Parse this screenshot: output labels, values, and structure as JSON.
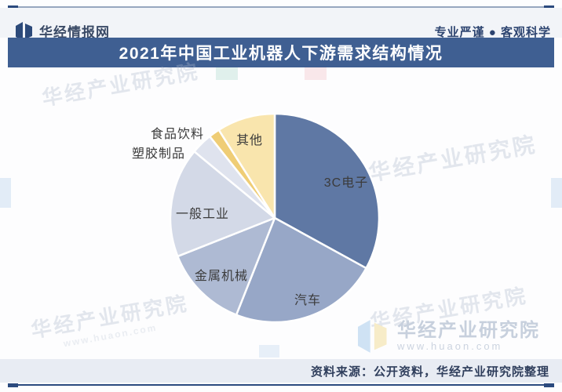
{
  "header": {
    "brand": "华经情报网",
    "slogan": "专业严谨 ● 客观科学"
  },
  "title": "2021年中国工业机器人下游需求结构情况",
  "chart_data": {
    "type": "pie",
    "title": "2021年中国工业机器人下游需求结构情况",
    "categories": [
      "3C电子",
      "汽车",
      "金属机械",
      "一般工业",
      "塑胶制品",
      "食品饮料",
      "其他"
    ],
    "values": [
      33,
      23,
      13,
      17,
      3.3,
      1.7,
      9
    ],
    "unit": "%",
    "colors": [
      "#5f78a4",
      "#97a7c7",
      "#aebad3",
      "#d3d9e7",
      "#dfe3ee",
      "#efcd75",
      "#f9e5ad"
    ],
    "start_angle_deg": 0,
    "direction": "clockwise",
    "legend_position": "none",
    "data_labels": "category names only, no percentages shown"
  },
  "watermark": {
    "name": "华经产业研究院",
    "url": "www.huaon.com"
  },
  "footer": {
    "source": "资料来源：公开资料，华经产业研究院整理"
  }
}
